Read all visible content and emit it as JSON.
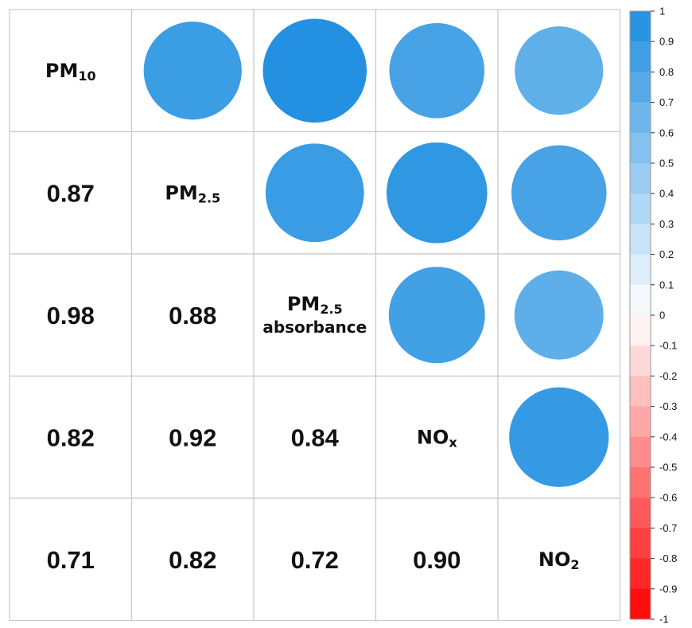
{
  "chart_data": {
    "type": "heatmap",
    "variables": [
      {
        "main": "PM",
        "sub": "10",
        "line2": ""
      },
      {
        "main": "PM",
        "sub": "2.5",
        "line2": ""
      },
      {
        "main": "PM",
        "sub": "2.5",
        "line2": "absorbance"
      },
      {
        "main": "NO",
        "sub": "x",
        "line2": ""
      },
      {
        "main": "NO",
        "sub": "2",
        "line2": ""
      }
    ],
    "matrix": [
      [
        1.0,
        0.87,
        0.98,
        0.82,
        0.71
      ],
      [
        0.87,
        1.0,
        0.88,
        0.92,
        0.82
      ],
      [
        0.98,
        0.88,
        1.0,
        0.84,
        0.72
      ],
      [
        0.82,
        0.92,
        0.84,
        1.0,
        0.9
      ],
      [
        0.71,
        0.82,
        0.72,
        0.9,
        1.0
      ]
    ],
    "lower": {
      "method": "number",
      "labels": [
        [
          "0.87"
        ],
        [
          "0.98",
          "0.88"
        ],
        [
          "0.82",
          "0.92",
          "0.84"
        ],
        [
          "0.71",
          "0.82",
          "0.72",
          "0.90"
        ]
      ]
    },
    "upper": {
      "method": "circle"
    },
    "colorbar": {
      "ticks": [
        "1",
        "0.9",
        "0.8",
        "0.7",
        "0.6",
        "0.5",
        "0.4",
        "0.3",
        "0.2",
        "0.1",
        "0",
        "-0.1",
        "-0.2",
        "-0.3",
        "-0.4",
        "-0.5",
        "-0.6",
        "-0.7",
        "-0.8",
        "-0.9",
        "-1"
      ],
      "range": [
        -1,
        1
      ],
      "negative_color": "#ff0000",
      "positive_color": "#1e8ee0",
      "neutral_color": "#ffffff"
    },
    "grid_color": "#c8c8c8"
  }
}
